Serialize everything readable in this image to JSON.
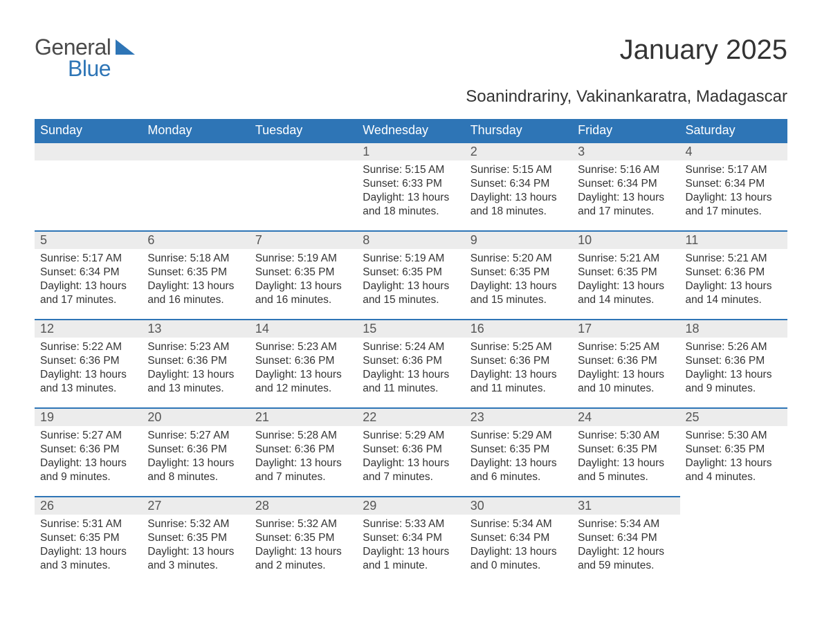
{
  "logo": {
    "general": "General",
    "blue": "Blue",
    "triangle_color": "#2e75b6"
  },
  "title": "January 2025",
  "subtitle": "Soanindrariny, Vakinankaratra, Madagascar",
  "colors": {
    "header_bg": "#2e75b6",
    "header_text": "#ffffff",
    "daybar_bg": "#ececec",
    "daybar_border": "#2e75b6",
    "text": "#333333",
    "background": "#ffffff"
  },
  "typography": {
    "title_fontsize": 40,
    "subtitle_fontsize": 24,
    "header_fontsize": 18,
    "daynum_fontsize": 18,
    "body_fontsize": 15.5
  },
  "days_of_week": [
    "Sunday",
    "Monday",
    "Tuesday",
    "Wednesday",
    "Thursday",
    "Friday",
    "Saturday"
  ],
  "weeks": [
    [
      null,
      null,
      null,
      {
        "n": "1",
        "sr": "Sunrise: 5:15 AM",
        "ss": "Sunset: 6:33 PM",
        "d1": "Daylight: 13 hours",
        "d2": "and 18 minutes."
      },
      {
        "n": "2",
        "sr": "Sunrise: 5:15 AM",
        "ss": "Sunset: 6:34 PM",
        "d1": "Daylight: 13 hours",
        "d2": "and 18 minutes."
      },
      {
        "n": "3",
        "sr": "Sunrise: 5:16 AM",
        "ss": "Sunset: 6:34 PM",
        "d1": "Daylight: 13 hours",
        "d2": "and 17 minutes."
      },
      {
        "n": "4",
        "sr": "Sunrise: 5:17 AM",
        "ss": "Sunset: 6:34 PM",
        "d1": "Daylight: 13 hours",
        "d2": "and 17 minutes."
      }
    ],
    [
      {
        "n": "5",
        "sr": "Sunrise: 5:17 AM",
        "ss": "Sunset: 6:34 PM",
        "d1": "Daylight: 13 hours",
        "d2": "and 17 minutes."
      },
      {
        "n": "6",
        "sr": "Sunrise: 5:18 AM",
        "ss": "Sunset: 6:35 PM",
        "d1": "Daylight: 13 hours",
        "d2": "and 16 minutes."
      },
      {
        "n": "7",
        "sr": "Sunrise: 5:19 AM",
        "ss": "Sunset: 6:35 PM",
        "d1": "Daylight: 13 hours",
        "d2": "and 16 minutes."
      },
      {
        "n": "8",
        "sr": "Sunrise: 5:19 AM",
        "ss": "Sunset: 6:35 PM",
        "d1": "Daylight: 13 hours",
        "d2": "and 15 minutes."
      },
      {
        "n": "9",
        "sr": "Sunrise: 5:20 AM",
        "ss": "Sunset: 6:35 PM",
        "d1": "Daylight: 13 hours",
        "d2": "and 15 minutes."
      },
      {
        "n": "10",
        "sr": "Sunrise: 5:21 AM",
        "ss": "Sunset: 6:35 PM",
        "d1": "Daylight: 13 hours",
        "d2": "and 14 minutes."
      },
      {
        "n": "11",
        "sr": "Sunrise: 5:21 AM",
        "ss": "Sunset: 6:36 PM",
        "d1": "Daylight: 13 hours",
        "d2": "and 14 minutes."
      }
    ],
    [
      {
        "n": "12",
        "sr": "Sunrise: 5:22 AM",
        "ss": "Sunset: 6:36 PM",
        "d1": "Daylight: 13 hours",
        "d2": "and 13 minutes."
      },
      {
        "n": "13",
        "sr": "Sunrise: 5:23 AM",
        "ss": "Sunset: 6:36 PM",
        "d1": "Daylight: 13 hours",
        "d2": "and 13 minutes."
      },
      {
        "n": "14",
        "sr": "Sunrise: 5:23 AM",
        "ss": "Sunset: 6:36 PM",
        "d1": "Daylight: 13 hours",
        "d2": "and 12 minutes."
      },
      {
        "n": "15",
        "sr": "Sunrise: 5:24 AM",
        "ss": "Sunset: 6:36 PM",
        "d1": "Daylight: 13 hours",
        "d2": "and 11 minutes."
      },
      {
        "n": "16",
        "sr": "Sunrise: 5:25 AM",
        "ss": "Sunset: 6:36 PM",
        "d1": "Daylight: 13 hours",
        "d2": "and 11 minutes."
      },
      {
        "n": "17",
        "sr": "Sunrise: 5:25 AM",
        "ss": "Sunset: 6:36 PM",
        "d1": "Daylight: 13 hours",
        "d2": "and 10 minutes."
      },
      {
        "n": "18",
        "sr": "Sunrise: 5:26 AM",
        "ss": "Sunset: 6:36 PM",
        "d1": "Daylight: 13 hours",
        "d2": "and 9 minutes."
      }
    ],
    [
      {
        "n": "19",
        "sr": "Sunrise: 5:27 AM",
        "ss": "Sunset: 6:36 PM",
        "d1": "Daylight: 13 hours",
        "d2": "and 9 minutes."
      },
      {
        "n": "20",
        "sr": "Sunrise: 5:27 AM",
        "ss": "Sunset: 6:36 PM",
        "d1": "Daylight: 13 hours",
        "d2": "and 8 minutes."
      },
      {
        "n": "21",
        "sr": "Sunrise: 5:28 AM",
        "ss": "Sunset: 6:36 PM",
        "d1": "Daylight: 13 hours",
        "d2": "and 7 minutes."
      },
      {
        "n": "22",
        "sr": "Sunrise: 5:29 AM",
        "ss": "Sunset: 6:36 PM",
        "d1": "Daylight: 13 hours",
        "d2": "and 7 minutes."
      },
      {
        "n": "23",
        "sr": "Sunrise: 5:29 AM",
        "ss": "Sunset: 6:35 PM",
        "d1": "Daylight: 13 hours",
        "d2": "and 6 minutes."
      },
      {
        "n": "24",
        "sr": "Sunrise: 5:30 AM",
        "ss": "Sunset: 6:35 PM",
        "d1": "Daylight: 13 hours",
        "d2": "and 5 minutes."
      },
      {
        "n": "25",
        "sr": "Sunrise: 5:30 AM",
        "ss": "Sunset: 6:35 PM",
        "d1": "Daylight: 13 hours",
        "d2": "and 4 minutes."
      }
    ],
    [
      {
        "n": "26",
        "sr": "Sunrise: 5:31 AM",
        "ss": "Sunset: 6:35 PM",
        "d1": "Daylight: 13 hours",
        "d2": "and 3 minutes."
      },
      {
        "n": "27",
        "sr": "Sunrise: 5:32 AM",
        "ss": "Sunset: 6:35 PM",
        "d1": "Daylight: 13 hours",
        "d2": "and 3 minutes."
      },
      {
        "n": "28",
        "sr": "Sunrise: 5:32 AM",
        "ss": "Sunset: 6:35 PM",
        "d1": "Daylight: 13 hours",
        "d2": "and 2 minutes."
      },
      {
        "n": "29",
        "sr": "Sunrise: 5:33 AM",
        "ss": "Sunset: 6:34 PM",
        "d1": "Daylight: 13 hours",
        "d2": "and 1 minute."
      },
      {
        "n": "30",
        "sr": "Sunrise: 5:34 AM",
        "ss": "Sunset: 6:34 PM",
        "d1": "Daylight: 13 hours",
        "d2": "and 0 minutes."
      },
      {
        "n": "31",
        "sr": "Sunrise: 5:34 AM",
        "ss": "Sunset: 6:34 PM",
        "d1": "Daylight: 12 hours",
        "d2": "and 59 minutes."
      },
      null
    ]
  ]
}
